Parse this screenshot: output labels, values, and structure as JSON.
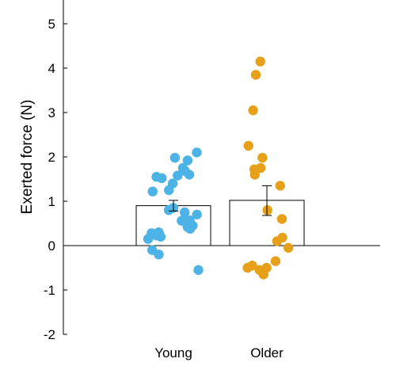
{
  "chart_data": {
    "type": "bar",
    "ylabel": "Exerted force (N)",
    "xlabel": "",
    "title": "",
    "ylim": [
      -2,
      5.5
    ],
    "yticks": [
      "-2",
      "-1",
      "0",
      "1",
      "2",
      "3",
      "4",
      "5"
    ],
    "categories": [
      "Young",
      "Older"
    ],
    "values": [
      0.9,
      1.02
    ],
    "error": [
      {
        "low": 0.78,
        "high": 1.02
      },
      {
        "low": 0.68,
        "high": 1.35
      }
    ],
    "individual_points": [
      {
        "category": "Young",
        "color": "#4db3e6",
        "values": [
          2.1,
          1.98,
          1.92,
          1.75,
          1.68,
          1.6,
          1.58,
          1.55,
          1.52,
          1.4,
          1.25,
          1.22,
          0.85,
          0.8,
          0.75,
          0.7,
          0.6,
          0.57,
          0.56,
          0.45,
          0.42,
          0.38,
          0.3,
          0.28,
          0.23,
          0.2,
          0.15,
          -0.1,
          -0.2,
          -0.55
        ]
      },
      {
        "category": "Older",
        "color": "#e6a019",
        "values": [
          4.15,
          3.85,
          3.05,
          2.25,
          1.98,
          1.75,
          1.72,
          1.6,
          1.35,
          0.8,
          0.6,
          0.18,
          0.1,
          -0.05,
          -0.35,
          -0.45,
          -0.5,
          -0.5,
          -0.55,
          -0.65
        ]
      }
    ],
    "bar_fill": "#ffffff",
    "bar_edge": "#000000",
    "zero_line": true,
    "grid": false
  }
}
